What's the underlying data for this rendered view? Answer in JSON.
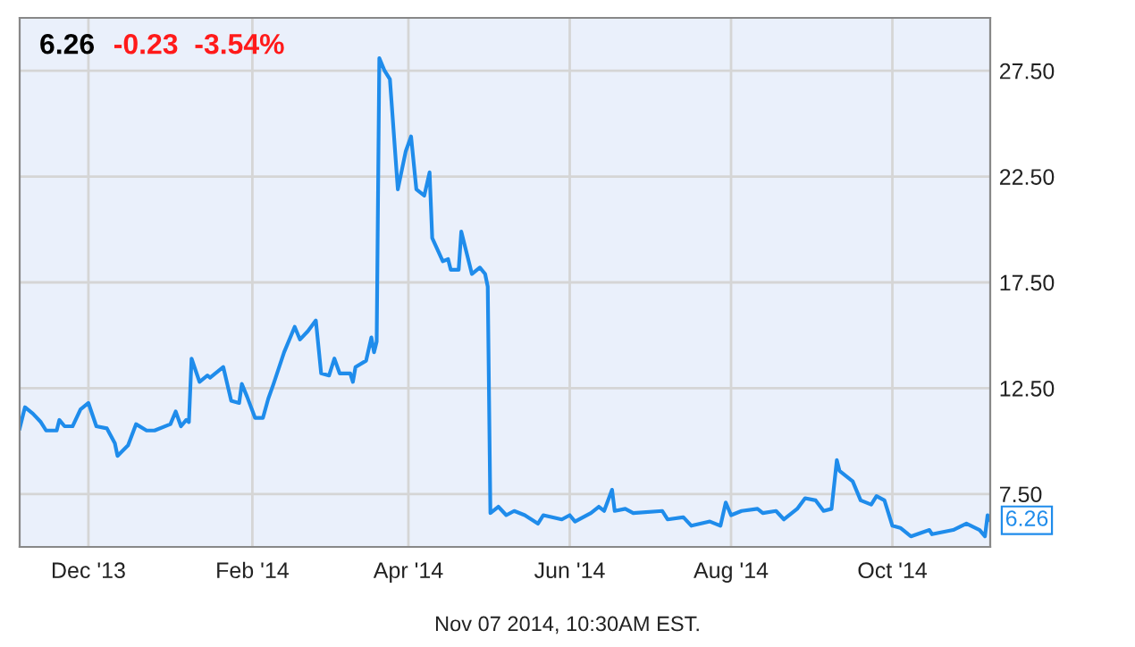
{
  "chart_data": {
    "type": "line",
    "title": "6.26",
    "subtitle": "-0.23  -3.54%",
    "x": [
      "2013-11-05",
      "2013-11-07",
      "2013-11-10",
      "2013-11-13",
      "2013-11-15",
      "2013-11-19",
      "2013-11-20",
      "2013-11-22",
      "2013-11-25",
      "2013-11-28",
      "2013-12-01",
      "2013-12-04",
      "2013-12-08",
      "2013-12-11",
      "2013-12-12",
      "2013-12-16",
      "2013-12-19",
      "2013-12-23",
      "2013-12-26",
      "2014-01-01",
      "2014-01-03",
      "2014-01-05",
      "2014-01-07",
      "2014-01-08",
      "2014-01-09",
      "2014-01-12",
      "2014-01-15",
      "2014-01-16",
      "2014-01-21",
      "2014-01-24",
      "2014-01-27",
      "2014-01-28",
      "2014-01-30",
      "2014-02-02",
      "2014-02-05",
      "2014-02-07",
      "2014-02-09",
      "2014-02-13",
      "2014-02-17",
      "2014-02-19",
      "2014-02-22",
      "2014-02-25",
      "2014-02-27",
      "2014-03-02",
      "2014-03-04",
      "2014-03-06",
      "2014-03-10",
      "2014-03-11",
      "2014-03-12",
      "2014-03-16",
      "2014-03-18",
      "2014-03-19",
      "2014-03-20",
      "2014-03-21",
      "2014-03-23",
      "2014-03-25",
      "2014-03-28",
      "2014-03-31",
      "2014-04-02",
      "2014-04-04",
      "2014-04-07",
      "2014-04-09",
      "2014-04-10",
      "2014-04-14",
      "2014-04-16",
      "2014-04-17",
      "2014-04-20",
      "2014-04-21",
      "2014-04-25",
      "2014-04-28",
      "2014-04-30",
      "2014-05-01",
      "2014-05-02",
      "2014-05-05",
      "2014-05-08",
      "2014-05-11",
      "2014-05-15",
      "2014-05-20",
      "2014-05-22",
      "2014-05-29",
      "2014-06-01",
      "2014-06-03",
      "2014-06-09",
      "2014-06-12",
      "2014-06-14",
      "2014-06-17",
      "2014-06-18",
      "2014-06-22",
      "2014-06-25",
      "2014-07-06",
      "2014-07-08",
      "2014-07-14",
      "2014-07-17",
      "2014-07-24",
      "2014-07-28",
      "2014-07-30",
      "2014-08-01",
      "2014-08-05",
      "2014-08-11",
      "2014-08-13",
      "2014-08-18",
      "2014-08-21",
      "2014-08-26",
      "2014-08-29",
      "2014-09-02",
      "2014-09-05",
      "2014-09-08",
      "2014-09-10",
      "2014-09-11",
      "2014-09-16",
      "2014-09-19",
      "2014-09-23",
      "2014-09-25",
      "2014-09-28",
      "2014-10-01",
      "2014-10-04",
      "2014-10-08",
      "2014-10-15",
      "2014-10-16",
      "2014-10-24",
      "2014-10-29",
      "2014-11-03",
      "2014-11-05",
      "2014-11-06",
      "2014-11-07"
    ],
    "series": [
      {
        "color": "#1f8ceb",
        "values": [
          10.6,
          11.6,
          11.3,
          10.9,
          10.5,
          10.5,
          11.0,
          10.7,
          10.7,
          11.5,
          11.8,
          10.7,
          10.6,
          9.9,
          9.3,
          9.8,
          10.8,
          10.5,
          10.5,
          10.8,
          11.4,
          10.7,
          11.0,
          10.9,
          13.9,
          12.8,
          13.1,
          13.0,
          13.5,
          11.9,
          11.8,
          12.7,
          12.1,
          11.1,
          11.1,
          12.0,
          12.7,
          14.2,
          15.4,
          14.8,
          15.2,
          15.7,
          13.2,
          13.1,
          13.9,
          13.2,
          13.2,
          12.8,
          13.5,
          13.8,
          14.9,
          14.2,
          14.7,
          28.1,
          27.5,
          27.1,
          21.9,
          23.7,
          24.4,
          21.9,
          21.6,
          22.7,
          19.6,
          18.5,
          18.6,
          18.1,
          18.1,
          19.9,
          17.9,
          18.2,
          17.9,
          17.3,
          6.6,
          6.9,
          6.5,
          6.7,
          6.5,
          6.1,
          6.5,
          6.3,
          6.5,
          6.2,
          6.6,
          6.9,
          6.7,
          7.7,
          6.7,
          6.8,
          6.6,
          6.7,
          6.3,
          6.4,
          6.0,
          6.2,
          6.0,
          7.1,
          6.5,
          6.7,
          6.8,
          6.6,
          6.7,
          6.3,
          6.8,
          7.3,
          7.2,
          6.7,
          6.8,
          9.1,
          8.6,
          8.1,
          7.2,
          7.0,
          7.4,
          7.2,
          6.0,
          5.9,
          5.5,
          5.8,
          5.6,
          5.8,
          6.1,
          5.8,
          5.5,
          6.5,
          6.26
        ]
      }
    ],
    "xlim": [
      "2013-11-05",
      "2014-11-07"
    ],
    "xticks": [
      {
        "value": "2013-12-01",
        "label": "Dec '13"
      },
      {
        "value": "2014-02-01",
        "label": "Feb '14"
      },
      {
        "value": "2014-04-01",
        "label": "Apr '14"
      },
      {
        "value": "2014-06-01",
        "label": "Jun '14"
      },
      {
        "value": "2014-08-01",
        "label": "Aug '14"
      },
      {
        "value": "2014-10-01",
        "label": "Oct '14"
      }
    ],
    "ylim": [
      5,
      30
    ],
    "yticks": [
      {
        "value": 7.5,
        "label": "7.50"
      },
      {
        "value": 12.5,
        "label": "12.50"
      },
      {
        "value": 17.5,
        "label": "17.50"
      },
      {
        "value": 22.5,
        "label": "22.50"
      },
      {
        "value": 27.5,
        "label": "27.50"
      }
    ],
    "grid": true,
    "marker": "none",
    "line_style": "solid",
    "annotations": [
      {
        "text": "6.26",
        "x": "2014-11-07",
        "y": 6.26
      },
      "Nov 07 2014, 10:30AM EST."
    ]
  }
}
